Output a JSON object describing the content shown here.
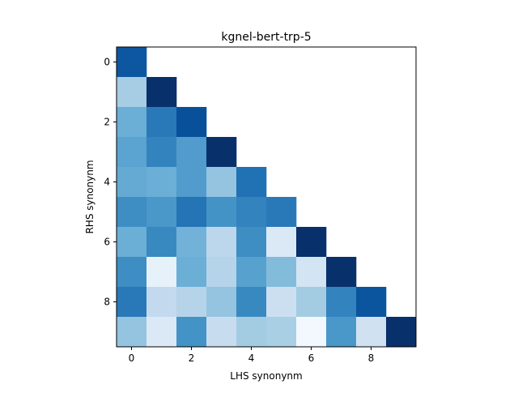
{
  "chart_data": {
    "type": "heatmap",
    "title": "kgnel-bert-trp-5",
    "xlabel": "LHS synonynm",
    "ylabel": "RHS synonynm",
    "xlim": [
      -0.5,
      9.5
    ],
    "ylim": [
      9.5,
      -0.5
    ],
    "x_ticks": [
      0,
      2,
      4,
      6,
      8
    ],
    "y_ticks": [
      0,
      2,
      4,
      6,
      8
    ],
    "colormap": "Blues",
    "grid": false,
    "legend": "none",
    "values": [
      [
        0.85,
        null,
        null,
        null,
        null,
        null,
        null,
        null,
        null,
        null
      ],
      [
        0.35,
        1.0,
        null,
        null,
        null,
        null,
        null,
        null,
        null,
        null
      ],
      [
        0.5,
        0.72,
        0.88,
        null,
        null,
        null,
        null,
        null,
        null,
        null
      ],
      [
        0.55,
        0.68,
        0.58,
        1.0,
        null,
        null,
        null,
        null,
        null,
        null
      ],
      [
        0.52,
        0.5,
        0.58,
        0.4,
        0.75,
        null,
        null,
        null,
        null,
        null
      ],
      [
        0.64,
        0.6,
        0.74,
        0.62,
        0.68,
        0.72,
        null,
        null,
        null,
        null
      ],
      [
        0.5,
        0.66,
        0.48,
        0.28,
        0.64,
        0.14,
        1.0,
        null,
        null,
        null
      ],
      [
        0.64,
        0.08,
        0.5,
        0.3,
        0.56,
        0.44,
        0.18,
        1.0,
        null,
        null
      ],
      [
        0.72,
        0.26,
        0.3,
        0.4,
        0.66,
        0.22,
        0.36,
        0.68,
        0.86,
        null
      ],
      [
        0.4,
        0.14,
        0.62,
        0.24,
        0.36,
        0.34,
        0.02,
        0.6,
        0.2,
        1.0
      ]
    ]
  }
}
